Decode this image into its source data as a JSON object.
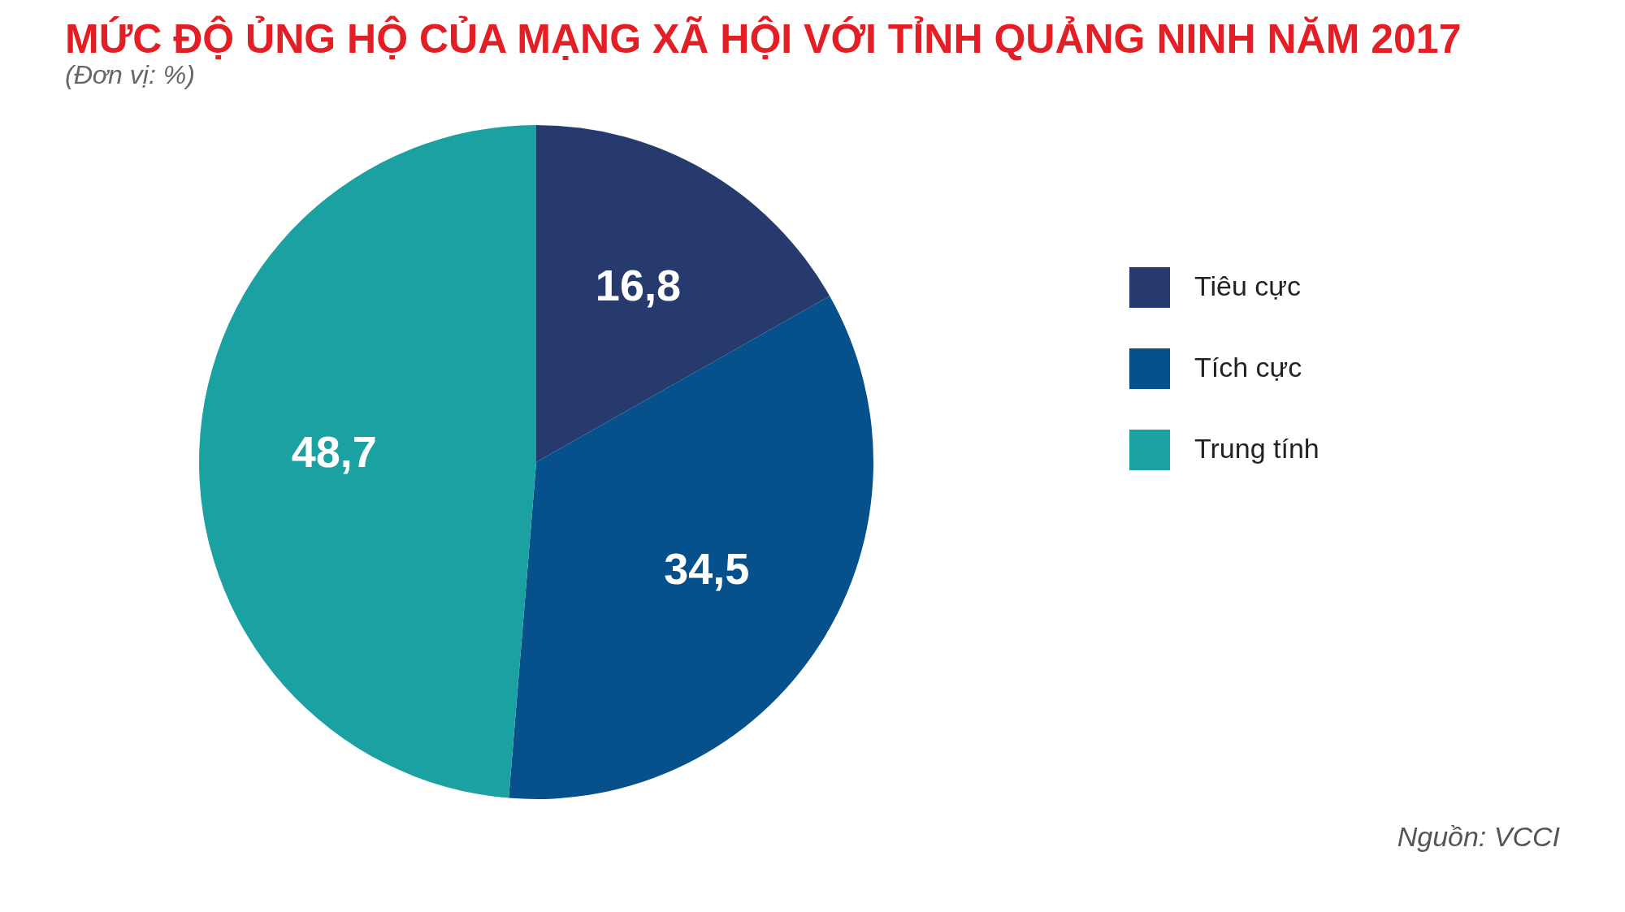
{
  "chart_data": {
    "type": "pie",
    "title": "MỨC ĐỘ ỦNG HỘ CỦA MẠNG XÃ HỘI VỚI TỈNH QUẢNG NINH NĂM 2017",
    "subtitle": "(Đơn vị: %)",
    "categories": [
      "Tiêu cực",
      "Tích cực",
      "Trung tính"
    ],
    "values": [
      16.8,
      34.5,
      48.7
    ],
    "value_labels": [
      "16,8",
      "34,5",
      "48,7"
    ],
    "colors": [
      "#263a6e",
      "#06508c",
      "#1ba1a1"
    ],
    "legend": "right",
    "annotations": [
      "Nguồn: VCCI"
    ]
  }
}
